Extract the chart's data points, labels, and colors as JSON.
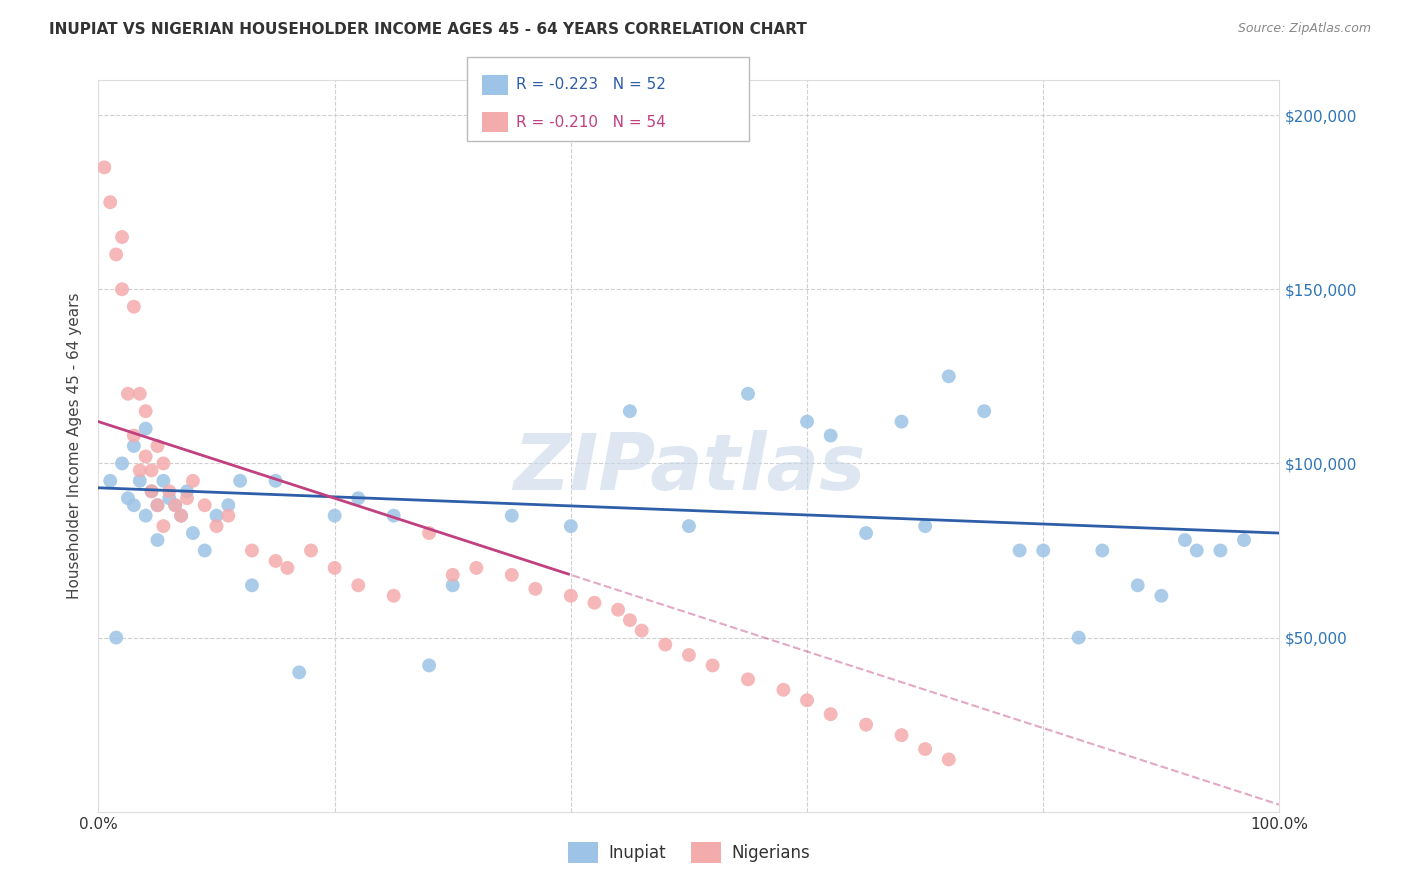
{
  "title": "INUPIAT VS NIGERIAN HOUSEHOLDER INCOME AGES 45 - 64 YEARS CORRELATION CHART",
  "source": "Source: ZipAtlas.com",
  "ylabel": "Householder Income Ages 45 - 64 years",
  "xlim": [
    0,
    100
  ],
  "ylim": [
    0,
    210000
  ],
  "yticks": [
    0,
    50000,
    100000,
    150000,
    200000
  ],
  "ytick_labels": [
    "",
    "$50,000",
    "$100,000",
    "$150,000",
    "$200,000"
  ],
  "xtick_labels": [
    "0.0%",
    "100.0%"
  ],
  "legend_r_blue": "-0.223",
  "legend_n_blue": "52",
  "legend_r_pink": "-0.210",
  "legend_n_pink": "54",
  "blue_color": "#9DC3E6",
  "pink_color": "#F4ABAB",
  "trend_blue_color": "#2E5EA8",
  "trend_pink_color": "#C04080",
  "watermark": "ZIPatlas",
  "inupiat_x": [
    1.0,
    1.5,
    2.0,
    2.5,
    3.0,
    3.0,
    3.5,
    4.0,
    4.0,
    4.5,
    5.0,
    5.0,
    5.5,
    6.0,
    6.5,
    7.0,
    7.5,
    8.0,
    9.0,
    10.0,
    11.0,
    12.0,
    13.0,
    15.0,
    17.0,
    20.0,
    22.0,
    25.0,
    28.0,
    30.0,
    35.0,
    40.0,
    45.0,
    50.0,
    55.0,
    60.0,
    62.0,
    65.0,
    68.0,
    70.0,
    72.0,
    75.0,
    78.0,
    80.0,
    83.0,
    85.0,
    88.0,
    90.0,
    92.0,
    93.0,
    95.0,
    97.0
  ],
  "inupiat_y": [
    95000,
    50000,
    100000,
    90000,
    105000,
    88000,
    95000,
    85000,
    110000,
    92000,
    88000,
    78000,
    95000,
    90000,
    88000,
    85000,
    92000,
    80000,
    75000,
    85000,
    88000,
    95000,
    65000,
    95000,
    40000,
    85000,
    90000,
    85000,
    42000,
    65000,
    85000,
    82000,
    115000,
    82000,
    120000,
    112000,
    108000,
    80000,
    112000,
    82000,
    125000,
    115000,
    75000,
    75000,
    50000,
    75000,
    65000,
    62000,
    78000,
    75000,
    75000,
    78000
  ],
  "nigerian_x": [
    0.5,
    1.0,
    1.5,
    2.0,
    2.0,
    2.5,
    3.0,
    3.0,
    3.5,
    3.5,
    4.0,
    4.0,
    4.5,
    4.5,
    5.0,
    5.0,
    5.5,
    5.5,
    6.0,
    6.5,
    7.0,
    7.5,
    8.0,
    9.0,
    10.0,
    11.0,
    13.0,
    15.0,
    16.0,
    18.0,
    20.0,
    22.0,
    25.0,
    28.0,
    30.0,
    32.0,
    35.0,
    37.0,
    40.0,
    42.0,
    44.0,
    45.0,
    46.0,
    48.0,
    50.0,
    52.0,
    55.0,
    58.0,
    60.0,
    62.0,
    65.0,
    68.0,
    70.0,
    72.0
  ],
  "nigerian_y": [
    185000,
    175000,
    160000,
    165000,
    150000,
    120000,
    145000,
    108000,
    120000,
    98000,
    115000,
    102000,
    98000,
    92000,
    105000,
    88000,
    100000,
    82000,
    92000,
    88000,
    85000,
    90000,
    95000,
    88000,
    82000,
    85000,
    75000,
    72000,
    70000,
    75000,
    70000,
    65000,
    62000,
    80000,
    68000,
    70000,
    68000,
    64000,
    62000,
    60000,
    58000,
    55000,
    52000,
    48000,
    45000,
    42000,
    38000,
    35000,
    32000,
    28000,
    25000,
    22000,
    18000,
    15000
  ]
}
